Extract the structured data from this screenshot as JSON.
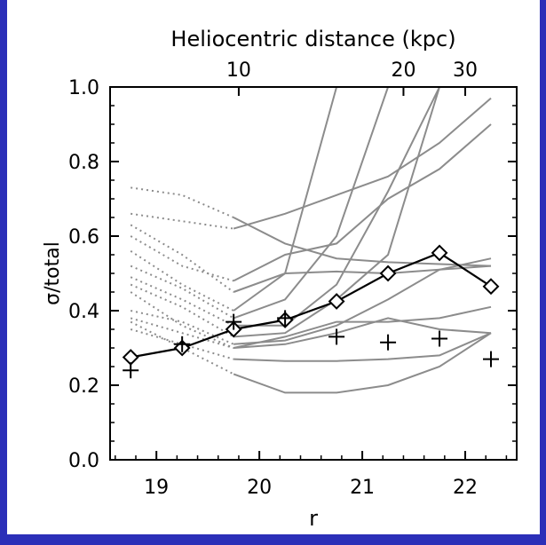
{
  "colors": {
    "background": "#2b2fb8",
    "panel": "#ffffff",
    "axis": "#000000",
    "model_lines": "#8c8c8c",
    "observed": "#000000"
  },
  "chart_data": {
    "type": "line",
    "xlabel": "r",
    "ylabel": "σ/total",
    "top_axis_label": "Heliocentric distance (kpc)",
    "xlim": [
      18.55,
      22.5
    ],
    "ylim": [
      0.0,
      1.0
    ],
    "x_ticks": [
      19,
      20,
      21,
      22
    ],
    "x_tick_labels": [
      "19",
      "20",
      "21",
      "22"
    ],
    "y_ticks": [
      0.0,
      0.2,
      0.4,
      0.6,
      0.8,
      1.0
    ],
    "y_tick_labels": [
      "0.0",
      "0.2",
      "0.4",
      "0.6",
      "0.8",
      "1.0"
    ],
    "top_ticks": [
      {
        "r": 19.8,
        "label": "10"
      },
      {
        "r": 21.4,
        "label": "20"
      },
      {
        "r": 22.0,
        "label": "30"
      }
    ],
    "series": [
      {
        "marker": "diamond",
        "connected": true,
        "x": [
          18.75,
          19.25,
          19.75,
          20.25,
          20.75,
          21.25,
          21.75,
          22.25
        ],
        "y": [
          0.275,
          0.3,
          0.35,
          0.375,
          0.425,
          0.5,
          0.555,
          0.465
        ]
      },
      {
        "marker": "plus",
        "connected": false,
        "x": [
          18.75,
          19.25,
          19.75,
          20.25,
          20.75,
          21.25,
          21.75,
          22.25
        ],
        "y": [
          0.24,
          0.31,
          0.37,
          0.38,
          0.33,
          0.315,
          0.325,
          0.27
        ]
      }
    ],
    "model_curves": [
      {
        "dotted": [
          [
            18.75,
            0.73
          ],
          [
            19.25,
            0.71
          ],
          [
            19.75,
            0.65
          ]
        ],
        "solid": [
          [
            19.75,
            0.65
          ],
          [
            20.25,
            0.58
          ],
          [
            20.75,
            0.54
          ],
          [
            21.25,
            0.53
          ],
          [
            21.75,
            0.525
          ],
          [
            22.25,
            0.52
          ]
        ]
      },
      {
        "dotted": [
          [
            18.75,
            0.66
          ],
          [
            19.25,
            0.64
          ],
          [
            19.75,
            0.62
          ]
        ],
        "solid": [
          [
            19.75,
            0.62
          ],
          [
            20.25,
            0.66
          ],
          [
            20.75,
            0.71
          ],
          [
            21.25,
            0.76
          ],
          [
            21.75,
            0.85
          ],
          [
            22.25,
            0.97
          ]
        ]
      },
      {
        "dotted": [
          [
            18.75,
            0.63
          ],
          [
            19.25,
            0.55
          ],
          [
            19.75,
            0.45
          ]
        ],
        "solid": [
          [
            19.75,
            0.45
          ],
          [
            20.25,
            0.5
          ],
          [
            20.75,
            0.505
          ],
          [
            21.25,
            0.5
          ],
          [
            21.75,
            0.51
          ],
          [
            22.25,
            0.52
          ]
        ]
      },
      {
        "dotted": [
          [
            18.75,
            0.6
          ],
          [
            19.25,
            0.52
          ],
          [
            19.75,
            0.48
          ]
        ],
        "solid": [
          [
            19.75,
            0.48
          ],
          [
            20.25,
            0.55
          ],
          [
            20.75,
            0.58
          ],
          [
            21.25,
            0.7
          ],
          [
            21.75,
            0.78
          ],
          [
            22.25,
            0.9
          ]
        ]
      },
      {
        "dotted": [
          [
            18.75,
            0.56
          ],
          [
            19.25,
            0.47
          ],
          [
            19.75,
            0.4
          ]
        ],
        "solid": [
          [
            19.75,
            0.4
          ],
          [
            20.25,
            0.5
          ],
          [
            20.75,
            1.0
          ]
        ]
      },
      {
        "dotted": [
          [
            18.75,
            0.52
          ],
          [
            19.25,
            0.46
          ],
          [
            19.75,
            0.38
          ]
        ],
        "solid": [
          [
            19.75,
            0.38
          ],
          [
            20.25,
            0.43
          ],
          [
            20.75,
            0.6
          ],
          [
            21.25,
            1.0
          ]
        ]
      },
      {
        "dotted": [
          [
            18.75,
            0.49
          ],
          [
            19.25,
            0.43
          ],
          [
            19.75,
            0.36
          ]
        ],
        "solid": [
          [
            19.75,
            0.36
          ],
          [
            20.25,
            0.36
          ],
          [
            20.75,
            0.47
          ],
          [
            21.25,
            0.72
          ],
          [
            21.75,
            1.0
          ]
        ]
      },
      {
        "dotted": [
          [
            18.75,
            0.47
          ],
          [
            19.25,
            0.41
          ],
          [
            19.75,
            0.33
          ]
        ],
        "solid": [
          [
            19.75,
            0.33
          ],
          [
            20.25,
            0.34
          ],
          [
            20.75,
            0.43
          ],
          [
            21.25,
            0.55
          ],
          [
            21.75,
            1.0
          ],
          [
            22.25,
            1.0
          ]
        ]
      },
      {
        "dotted": [
          [
            18.75,
            0.4
          ],
          [
            19.25,
            0.37
          ],
          [
            19.75,
            0.31
          ]
        ],
        "solid": [
          [
            19.75,
            0.31
          ],
          [
            20.25,
            0.32
          ],
          [
            20.75,
            0.36
          ],
          [
            21.25,
            0.43
          ],
          [
            21.75,
            0.51
          ],
          [
            22.25,
            0.54
          ]
        ]
      },
      {
        "dotted": [
          [
            18.75,
            0.38
          ],
          [
            19.25,
            0.34
          ],
          [
            19.75,
            0.3
          ]
        ],
        "solid": [
          [
            19.75,
            0.3
          ],
          [
            20.25,
            0.31
          ],
          [
            20.75,
            0.34
          ],
          [
            21.25,
            0.38
          ],
          [
            21.75,
            0.35
          ],
          [
            22.25,
            0.34
          ]
        ]
      },
      {
        "dotted": [
          [
            18.75,
            0.35
          ],
          [
            19.25,
            0.31
          ],
          [
            19.75,
            0.27
          ]
        ],
        "solid": [
          [
            19.75,
            0.27
          ],
          [
            20.25,
            0.265
          ],
          [
            20.75,
            0.265
          ],
          [
            21.25,
            0.27
          ],
          [
            21.75,
            0.28
          ],
          [
            22.25,
            0.34
          ]
        ]
      },
      {
        "dotted": [
          [
            18.75,
            0.37
          ],
          [
            19.25,
            0.3
          ],
          [
            19.75,
            0.23
          ]
        ],
        "solid": [
          [
            19.75,
            0.23
          ],
          [
            20.25,
            0.18
          ],
          [
            20.75,
            0.18
          ],
          [
            21.25,
            0.2
          ],
          [
            21.75,
            0.25
          ],
          [
            22.25,
            0.34
          ]
        ]
      },
      {
        "dotted": [
          [
            18.75,
            0.45
          ],
          [
            19.25,
            0.36
          ],
          [
            19.75,
            0.3
          ]
        ],
        "solid": [
          [
            19.75,
            0.3
          ],
          [
            20.25,
            0.33
          ],
          [
            20.75,
            0.37
          ],
          [
            21.25,
            0.37
          ],
          [
            21.75,
            0.38
          ],
          [
            22.25,
            0.41
          ]
        ]
      }
    ]
  }
}
